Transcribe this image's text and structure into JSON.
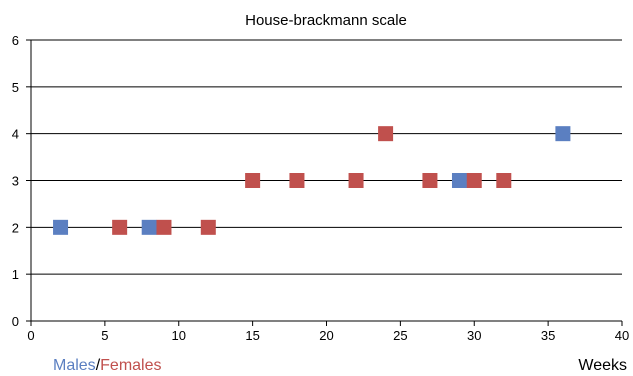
{
  "chart_data": {
    "type": "scatter",
    "title": "House-brackmann scale",
    "xlabel": "Weeks",
    "ylabel": "",
    "xlim": [
      0,
      40
    ],
    "ylim": [
      0,
      6
    ],
    "x_ticks": [
      0,
      5,
      10,
      15,
      20,
      25,
      30,
      35,
      40
    ],
    "y_ticks": [
      0,
      1,
      2,
      3,
      4,
      5,
      6
    ],
    "grid": "horizontal",
    "legend": {
      "placement": "bottom-left",
      "males_label": "Males",
      "separator": "/",
      "females_label": "Females"
    },
    "series": [
      {
        "name": "Males",
        "color": "#5b7fc1",
        "marker": "square",
        "points": [
          {
            "x": 2,
            "y": 2
          },
          {
            "x": 8,
            "y": 2
          },
          {
            "x": 29,
            "y": 3
          },
          {
            "x": 36,
            "y": 4
          }
        ]
      },
      {
        "name": "Females",
        "color": "#c0504d",
        "marker": "square",
        "points": [
          {
            "x": 6,
            "y": 2
          },
          {
            "x": 9,
            "y": 2
          },
          {
            "x": 12,
            "y": 2
          },
          {
            "x": 15,
            "y": 3
          },
          {
            "x": 18,
            "y": 3
          },
          {
            "x": 22,
            "y": 3
          },
          {
            "x": 24,
            "y": 4
          },
          {
            "x": 27,
            "y": 3
          },
          {
            "x": 30,
            "y": 3
          },
          {
            "x": 32,
            "y": 3
          }
        ]
      }
    ]
  }
}
